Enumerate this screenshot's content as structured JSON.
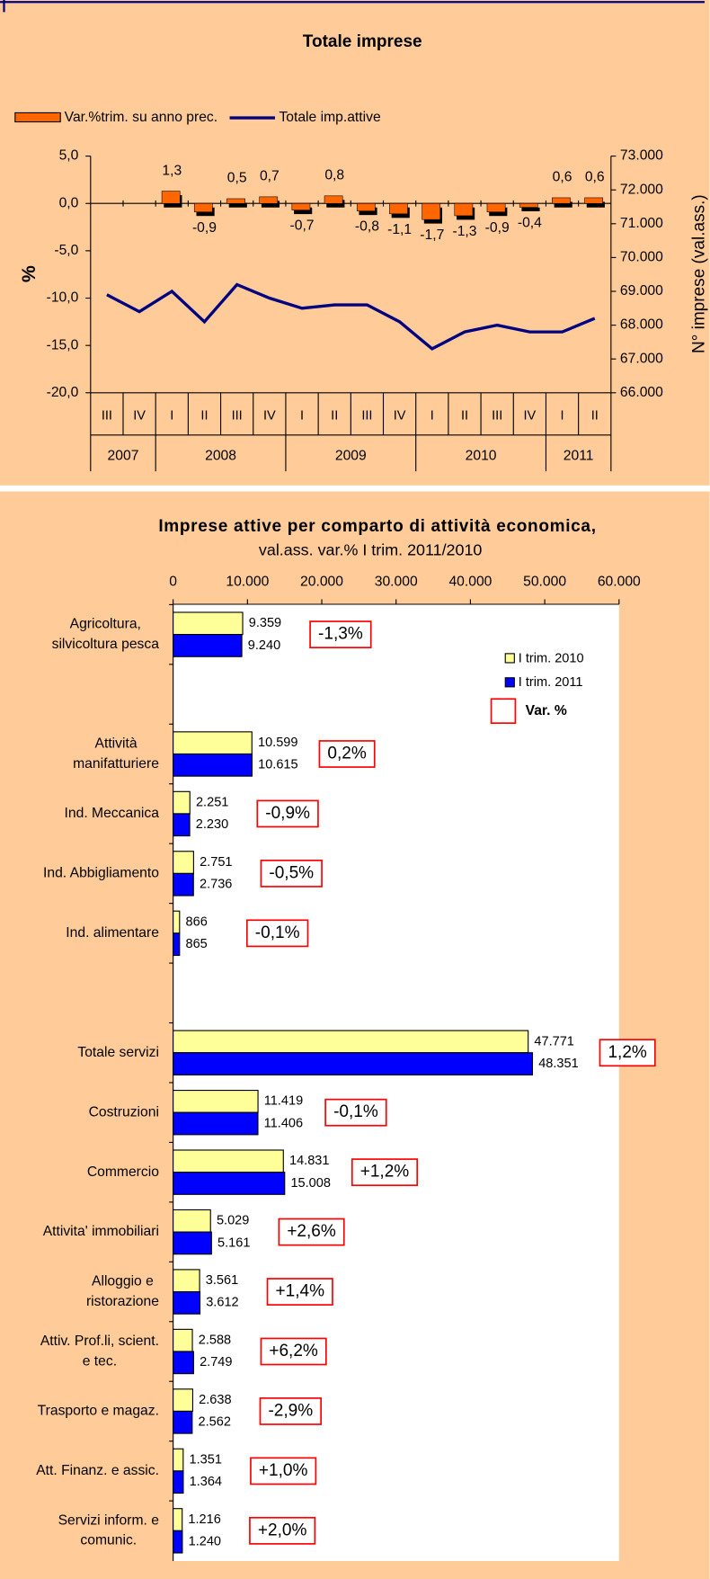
{
  "chart_data": [
    {
      "type": "bar",
      "title": "Totale imprese",
      "categories": [
        "III",
        "IV",
        "I",
        "II",
        "III",
        "IV",
        "I",
        "II",
        "III",
        "IV",
        "I",
        "II",
        "III",
        "IV",
        "I",
        "II"
      ],
      "category_years": [
        "2007",
        "2007",
        "2008",
        "2008",
        "2008",
        "2008",
        "2009",
        "2009",
        "2009",
        "2009",
        "2010",
        "2010",
        "2010",
        "2010",
        "2011",
        "2011"
      ],
      "series": [
        {
          "name": "Var.%trim. su anno prec.",
          "color": "#ff6600",
          "type": "bar",
          "values": [
            null,
            null,
            1.3,
            -0.9,
            0.5,
            0.7,
            -0.7,
            0.8,
            -0.8,
            -1.1,
            -1.7,
            -1.3,
            -0.9,
            -0.4,
            0.6,
            0.6
          ],
          "value_labels": [
            null,
            null,
            "1,3",
            "-0,9",
            "0,5",
            "0,7",
            "-0,7",
            "0,8",
            "-0,8",
            "-1,1",
            "-1,7",
            "-1,3",
            "-0,9",
            "-0,4",
            "0,6",
            "0,6"
          ]
        },
        {
          "name": "Totale imp.attive",
          "color": "#000080",
          "type": "line",
          "axis": "y2",
          "values": [
            68900,
            68400,
            69000,
            68100,
            69200,
            68800,
            68500,
            68600,
            68600,
            68100,
            67300,
            67800,
            68000,
            67800,
            67800,
            68200
          ]
        }
      ],
      "ylabel": "%",
      "y2label": "N° imprese (val.ass.)",
      "ylim": [
        -20,
        5
      ],
      "yticks": [
        {
          "value": 5,
          "label": "5,0"
        },
        {
          "value": 0,
          "label": "0,0"
        },
        {
          "value": -5,
          "label": "-5,0"
        },
        {
          "value": -10,
          "label": "-10,0"
        },
        {
          "value": -15,
          "label": "-15,0"
        },
        {
          "value": -20,
          "label": "-20,0"
        }
      ],
      "y2lim": [
        66000,
        73000
      ],
      "y2ticks": [
        {
          "value": 73000,
          "label": "73.000"
        },
        {
          "value": 72000,
          "label": "72.000"
        },
        {
          "value": 71000,
          "label": "71.000"
        },
        {
          "value": 70000,
          "label": "70.000"
        },
        {
          "value": 69000,
          "label": "69.000"
        },
        {
          "value": 68000,
          "label": "68.000"
        },
        {
          "value": 67000,
          "label": "67.000"
        },
        {
          "value": 66000,
          "label": "66.000"
        }
      ]
    },
    {
      "type": "hbar",
      "title": "Imprese attive per comparto di attività economica,",
      "subtitle": "val.ass. var.% I trim. 2011/2010",
      "categories": [
        [
          "Agricoltura,",
          "silvicoltura pesca"
        ],
        null,
        [
          "Attività",
          "manifatturiere"
        ],
        "Ind. Meccanica",
        "Ind. Abbigliamento",
        "Ind. alimentare",
        null,
        "Totale servizi",
        "Costruzioni",
        "Commercio",
        "Attivita' immobiliari",
        [
          "Alloggio e",
          "ristorazione"
        ],
        [
          "Attiv. Prof.li, scient.",
          "e tec."
        ],
        "Trasporto e magaz.",
        "Att. Finanz. e assic.",
        [
          "Servizi inform. e",
          "comunic."
        ]
      ],
      "series": [
        {
          "name": "I trim. 2010",
          "color": "#ffff99",
          "values": [
            9359,
            null,
            10599,
            2251,
            2751,
            866,
            null,
            47771,
            11419,
            14831,
            5029,
            3561,
            2588,
            2638,
            1351,
            1216
          ],
          "value_labels": [
            "9.359",
            null,
            "10.599",
            "2.251",
            "2.751",
            "866",
            null,
            "47.771",
            "11.419",
            "14.831",
            "5.029",
            "3.561",
            "2.588",
            "2.638",
            "1.351",
            "1.216"
          ]
        },
        {
          "name": "I trim. 2011",
          "color": "#0000ff",
          "values": [
            9240,
            null,
            10615,
            2230,
            2736,
            865,
            null,
            48351,
            11406,
            15008,
            5161,
            3612,
            2749,
            2562,
            1364,
            1240
          ],
          "value_labels": [
            "9.240",
            null,
            "10.615",
            "2.230",
            "2.736",
            "865",
            null,
            "48.351",
            "11.406",
            "15.008",
            "5.161",
            "3.612",
            "2.749",
            "2.562",
            "1.364",
            "1.240"
          ]
        }
      ],
      "changes": {
        "name": "Var. %",
        "color": "#ff0000",
        "values": [
          -1.3,
          null,
          0.2,
          -0.9,
          -0.5,
          -0.1,
          null,
          1.2,
          -0.1,
          1.2,
          2.6,
          1.4,
          6.2,
          -2.9,
          1.0,
          2.0
        ],
        "value_labels": [
          "-1,3%",
          null,
          "0,2%",
          "-0,9%",
          "-0,5%",
          "-0,1%",
          null,
          "1,2%",
          "-0,1%",
          "+1,2%",
          "+2,6%",
          "+1,4%",
          "+6,2%",
          "-2,9%",
          "+1,0%",
          "+2,0%"
        ]
      },
      "xlim": [
        0,
        60000
      ],
      "xticks": [
        0,
        {
          "value": 10000,
          "label": "10.000"
        },
        {
          "value": 20000,
          "label": "20.000"
        },
        {
          "value": 30000,
          "label": "30.000"
        },
        {
          "value": 40000,
          "label": "40.000"
        },
        {
          "value": 50000,
          "label": "50.000"
        },
        {
          "value": 60000,
          "label": "60.000"
        }
      ]
    }
  ]
}
